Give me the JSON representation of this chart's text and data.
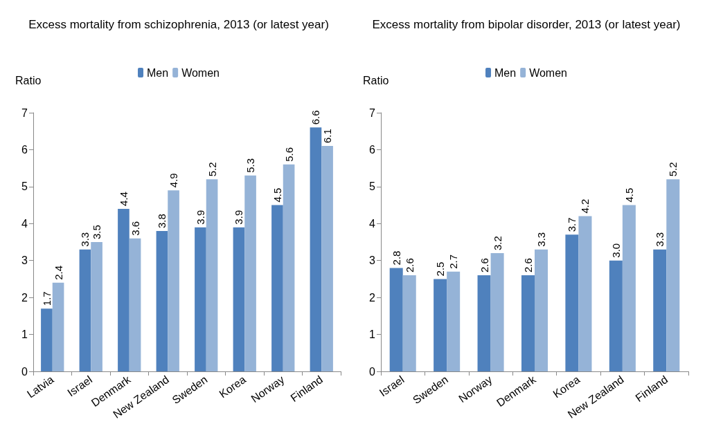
{
  "chart_data": [
    {
      "type": "bar",
      "title": "Excess mortality from schizophrenia, 2013 (or latest year)",
      "ylabel": "Ratio",
      "categories": [
        "Latvia",
        "Israel",
        "Denmark",
        "New Zealand",
        "Sweden",
        "Korea",
        "Norway",
        "Finland"
      ],
      "series": [
        {
          "name": "Men",
          "color": "#4f81bd",
          "values": [
            1.7,
            3.3,
            4.4,
            3.8,
            3.9,
            3.9,
            4.5,
            6.6
          ],
          "value_labels": [
            "1.7",
            "3.3",
            "4.4",
            "3.8",
            "3.9",
            "3.9",
            "4.5",
            "6.6"
          ]
        },
        {
          "name": "Women",
          "color": "#95b3d7",
          "values": [
            2.4,
            3.5,
            3.6,
            4.9,
            5.2,
            5.3,
            5.6,
            6.1
          ],
          "value_labels": [
            "2.4",
            "3.5",
            "3.6",
            "4.9",
            "5.2",
            "5.3",
            "5.6",
            "6.1"
          ]
        }
      ],
      "ylim": [
        0,
        7
      ],
      "yticks": [
        0,
        1,
        2,
        3,
        4,
        5,
        6,
        7
      ],
      "grid": false,
      "legend": "top"
    },
    {
      "type": "bar",
      "title": "Excess mortality from bipolar disorder, 2013 (or latest year)",
      "ylabel": "Ratio",
      "categories": [
        "Israel",
        "Sweden",
        "Norway",
        "Denmark",
        "Korea",
        "New Zealand",
        "Finland"
      ],
      "series": [
        {
          "name": "Men",
          "color": "#4f81bd",
          "values": [
            2.8,
            2.5,
            2.6,
            2.6,
            3.7,
            3.0,
            3.3
          ],
          "value_labels": [
            "2.8",
            "2.5",
            "2.6",
            "2.6",
            "3.7",
            "3.0",
            "3.3"
          ]
        },
        {
          "name": "Women",
          "color": "#95b3d7",
          "values": [
            2.6,
            2.7,
            3.2,
            3.3,
            4.2,
            4.5,
            5.2
          ],
          "value_labels": [
            "2.6",
            "2.7",
            "3.2",
            "3.3",
            "4.2",
            "4.5",
            "5.2"
          ]
        }
      ],
      "ylim": [
        0,
        7
      ],
      "yticks": [
        0,
        1,
        2,
        3,
        4,
        5,
        6,
        7
      ],
      "grid": false,
      "legend": "top"
    }
  ]
}
